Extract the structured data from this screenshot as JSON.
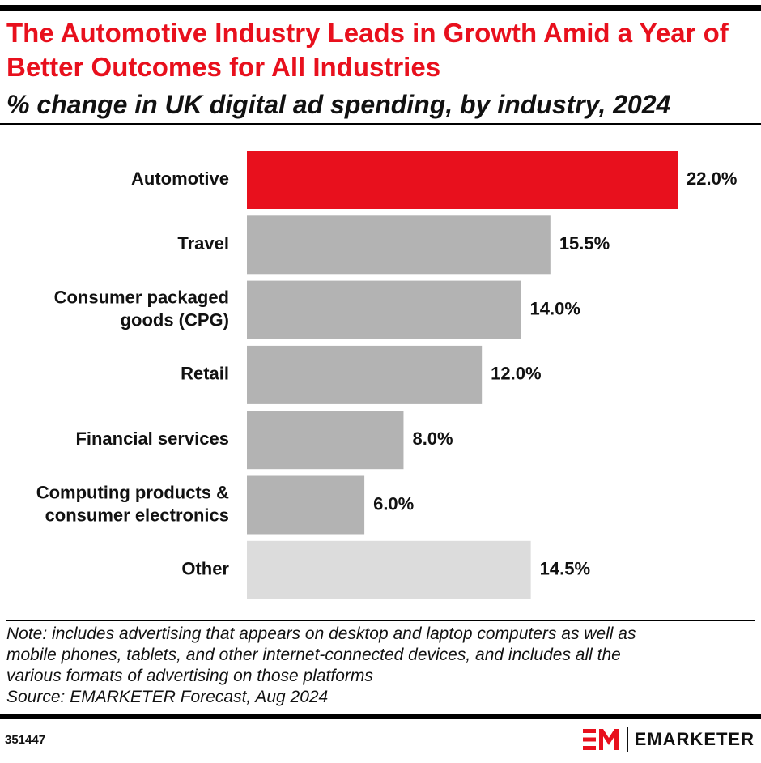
{
  "header": {
    "title": "The Automotive Industry Leads in Growth Amid a Year of Better Outcomes for All Industries",
    "subtitle": "% change in UK digital ad spending, by industry, 2024"
  },
  "chart_data": {
    "type": "bar",
    "orientation": "horizontal",
    "title": "The Automotive Industry Leads in Growth Amid a Year of Better Outcomes for All Industries",
    "subtitle": "% change in UK digital ad spending, by industry, 2024",
    "categories": [
      [
        "Automotive"
      ],
      [
        "Travel"
      ],
      [
        "Consumer packaged",
        "goods (CPG)"
      ],
      [
        "Retail"
      ],
      [
        "Financial services"
      ],
      [
        "Computing products &",
        "consumer electronics"
      ],
      [
        "Other"
      ]
    ],
    "values": [
      22.0,
      15.5,
      14.0,
      12.0,
      8.0,
      6.0,
      14.5
    ],
    "value_labels": [
      "22.0%",
      "15.5%",
      "14.0%",
      "12.0%",
      "8.0%",
      "6.0%",
      "14.5%"
    ],
    "bar_colors": [
      "#e8101d",
      "#b3b3b3",
      "#b3b3b3",
      "#b3b3b3",
      "#b3b3b3",
      "#b3b3b3",
      "#dcdcdc"
    ],
    "xlim": [
      0,
      22.0
    ],
    "grid": false,
    "legend": "none"
  },
  "footer": {
    "note_lines": [
      "Note: includes advertising that appears on desktop and laptop computers as well as",
      "mobile phones, tablets, and other internet-connected devices, and includes all the",
      "various formats of advertising on those platforms"
    ],
    "source": "Source: EMARKETER Forecast, Aug 2024",
    "chart_id": "351447",
    "brand": "EMARKETER",
    "brand_color": "#e8101d"
  }
}
